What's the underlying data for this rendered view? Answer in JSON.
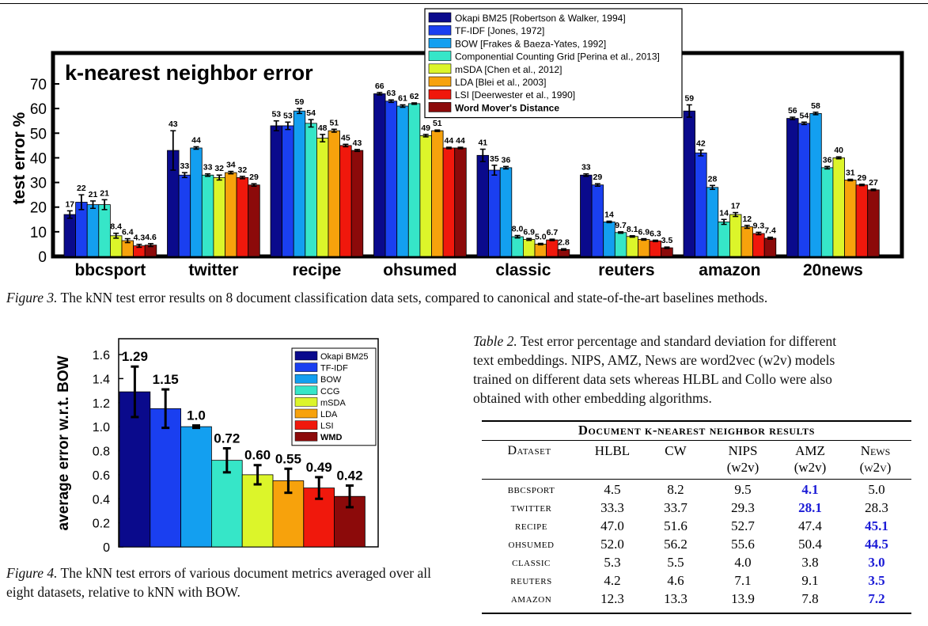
{
  "figure3": {
    "caption_label": "Figure 3.",
    "caption_text": "The kNN test error results on 8 document classification data sets, compared to canonical and state-of-the-art baselines methods.",
    "chart_data": {
      "type": "bar",
      "title": "k-nearest neighbor error",
      "ylabel": "test error %",
      "ylim": [
        0,
        72
      ],
      "yticks": [
        0,
        10,
        20,
        30,
        40,
        50,
        60,
        70
      ],
      "categories": [
        "bbcsport",
        "twitter",
        "recipe",
        "ohsumed",
        "classic",
        "reuters",
        "amazon",
        "20news"
      ],
      "legend_position": "top-right",
      "series": [
        {
          "name": "Okapi BM25 [Robertson & Walker, 1994]",
          "color": "#0a0a8c",
          "values": [
            17,
            43,
            53,
            66,
            41,
            33,
            59,
            56
          ],
          "labels": [
            "17",
            "43",
            "53",
            "66",
            "41",
            "33",
            "59",
            "56"
          ],
          "err": [
            1.5,
            8,
            2,
            0.5,
            2.5,
            0.5,
            2.5,
            0.5
          ]
        },
        {
          "name": "TF-IDF [Jones, 1972]",
          "color": "#1a3ff0",
          "values": [
            22,
            33,
            53,
            63,
            35,
            29,
            42,
            54
          ],
          "labels": [
            "22",
            "33",
            "53",
            "63",
            "35",
            "29",
            "42",
            "54"
          ],
          "err": [
            3,
            1,
            1.5,
            0.5,
            2,
            0.5,
            1.2,
            0.5
          ]
        },
        {
          "name": "BOW [Frakes & Baeza-Yates, 1992]",
          "color": "#139ff0",
          "values": [
            21,
            44,
            59,
            61,
            36,
            14,
            28,
            58
          ],
          "labels": [
            "21",
            "44",
            "59",
            "61",
            "36",
            "14",
            "28",
            "58"
          ],
          "err": [
            1.5,
            0.5,
            1,
            0.5,
            0.5,
            0.3,
            0.8,
            0.5
          ]
        },
        {
          "name": "Componential Counting Grid [Perina et al., 2013]",
          "color": "#36e6c8",
          "values": [
            21,
            33,
            54,
            62,
            8.0,
            9.7,
            14,
            36
          ],
          "labels": [
            "21",
            "33",
            "54",
            "62",
            "8.0",
            "9.7",
            "14",
            "36"
          ],
          "err": [
            2,
            0.5,
            1.5,
            0.3,
            0.5,
            0.3,
            1,
            0.5
          ]
        },
        {
          "name": "mSDA [Chen et al., 2012]",
          "color": "#dcf52a",
          "values": [
            8.4,
            32,
            48,
            49,
            6.9,
            8.1,
            17,
            40
          ],
          "labels": [
            "8.4",
            "32",
            "48",
            "49",
            "6.9",
            "8.1",
            "17",
            "40"
          ],
          "err": [
            1,
            1,
            1.5,
            0.5,
            0.4,
            0.3,
            0.8,
            0.4
          ]
        },
        {
          "name": "LDA [Blei et al., 2003]",
          "color": "#f7a20c",
          "values": [
            6.4,
            34,
            51,
            51,
            5.0,
            6.9,
            12,
            31
          ],
          "labels": [
            "6.4",
            "34",
            "51",
            "51",
            "5.0",
            "6.9",
            "12",
            "31"
          ],
          "err": [
            0.8,
            0.5,
            0.6,
            0.3,
            0.3,
            0.3,
            0.6,
            0.3
          ]
        },
        {
          "name": "LSI [Deerwester et al., 1990]",
          "color": "#f0180c",
          "values": [
            4.3,
            32,
            45,
            44,
            6.7,
            6.3,
            9.3,
            29
          ],
          "labels": [
            "4.3",
            "32",
            "45",
            "44",
            "6.7",
            "6.3",
            "9.3",
            "29"
          ],
          "err": [
            0.6,
            0.5,
            0.5,
            0.3,
            0.3,
            0.3,
            0.5,
            0.3
          ]
        },
        {
          "name": "Word Mover's Distance",
          "color": "#8c0a0a",
          "values": [
            4.6,
            29,
            43,
            44,
            2.8,
            3.5,
            7.4,
            27
          ],
          "labels": [
            "4.6",
            "29",
            "43",
            "44",
            "2.8",
            "3.5",
            "7.4",
            "27"
          ],
          "err": [
            0.6,
            0.5,
            0.4,
            0.3,
            0.3,
            0.3,
            0.4,
            0.3
          ]
        }
      ]
    }
  },
  "figure4": {
    "caption_label": "Figure 4.",
    "caption_text": "The kNN test errors of various document metrics averaged over all eight datasets, relative to kNN with BOW.",
    "chart_data": {
      "type": "bar",
      "ylabel": "average error w.r.t. BOW",
      "ylim": [
        0,
        1.7
      ],
      "yticks": [
        0,
        0.2,
        0.4,
        0.6,
        0.8,
        1.0,
        1.2,
        1.4,
        1.6
      ],
      "yticklabels": [
        "0",
        "0.2",
        "0.4",
        "0.6",
        "0.8",
        "1.0",
        "1.2",
        "1.4",
        "1.6"
      ],
      "legend_position": "top-right",
      "categories": [
        "Okapi BM25",
        "TF-IDF",
        "BOW",
        "CCG",
        "mSDA",
        "LDA",
        "LSI",
        "WMD"
      ],
      "colors": [
        "#0a0a8c",
        "#1a3ff0",
        "#139ff0",
        "#36e6c8",
        "#dcf52a",
        "#f7a20c",
        "#f0180c",
        "#8c0a0a"
      ],
      "values": [
        1.29,
        1.15,
        1.0,
        0.72,
        0.6,
        0.55,
        0.49,
        0.42
      ],
      "labels": [
        "1.29",
        "1.15",
        "1.0",
        "0.72",
        "0.60",
        "0.55",
        "0.49",
        "0.42"
      ],
      "err": [
        0.21,
        0.16,
        0.01,
        0.1,
        0.08,
        0.1,
        0.09,
        0.09
      ]
    }
  },
  "table2": {
    "caption_label": "Table 2.",
    "caption_lines": [
      "Test error percentage and standard deviation for different",
      "text embeddings. NIPS, AMZ, News are word2vec (w2v) models",
      "trained on different data sets whereas HLBL and Collo were also",
      "obtained with other embedding algorithms."
    ],
    "title": "Document k-nearest neighbor results",
    "columns": [
      {
        "line1": "Dataset",
        "line2": ""
      },
      {
        "line1": "HLBL",
        "line2": ""
      },
      {
        "line1": "CW",
        "line2": ""
      },
      {
        "line1": "NIPS",
        "line2": "(w2v)"
      },
      {
        "line1": "AMZ",
        "line2": "(w2v)"
      },
      {
        "line1": "News",
        "line2": "(w2v)"
      }
    ],
    "rows": [
      {
        "dataset": "bbcsport",
        "values": [
          "4.5",
          "8.2",
          "9.5",
          "4.1",
          "5.0"
        ],
        "best": 3
      },
      {
        "dataset": "twitter",
        "values": [
          "33.3",
          "33.7",
          "29.3",
          "28.1",
          "28.3"
        ],
        "best": 3
      },
      {
        "dataset": "recipe",
        "values": [
          "47.0",
          "51.6",
          "52.7",
          "47.4",
          "45.1"
        ],
        "best": 4
      },
      {
        "dataset": "ohsumed",
        "values": [
          "52.0",
          "56.2",
          "55.6",
          "50.4",
          "44.5"
        ],
        "best": 4
      },
      {
        "dataset": "classic",
        "values": [
          "5.3",
          "5.5",
          "4.0",
          "3.8",
          "3.0"
        ],
        "best": 4
      },
      {
        "dataset": "reuters",
        "values": [
          "4.2",
          "4.6",
          "7.1",
          "9.1",
          "3.5"
        ],
        "best": 4
      },
      {
        "dataset": "amazon",
        "values": [
          "12.3",
          "13.3",
          "13.9",
          "7.8",
          "7.2"
        ],
        "best": 4
      }
    ]
  }
}
